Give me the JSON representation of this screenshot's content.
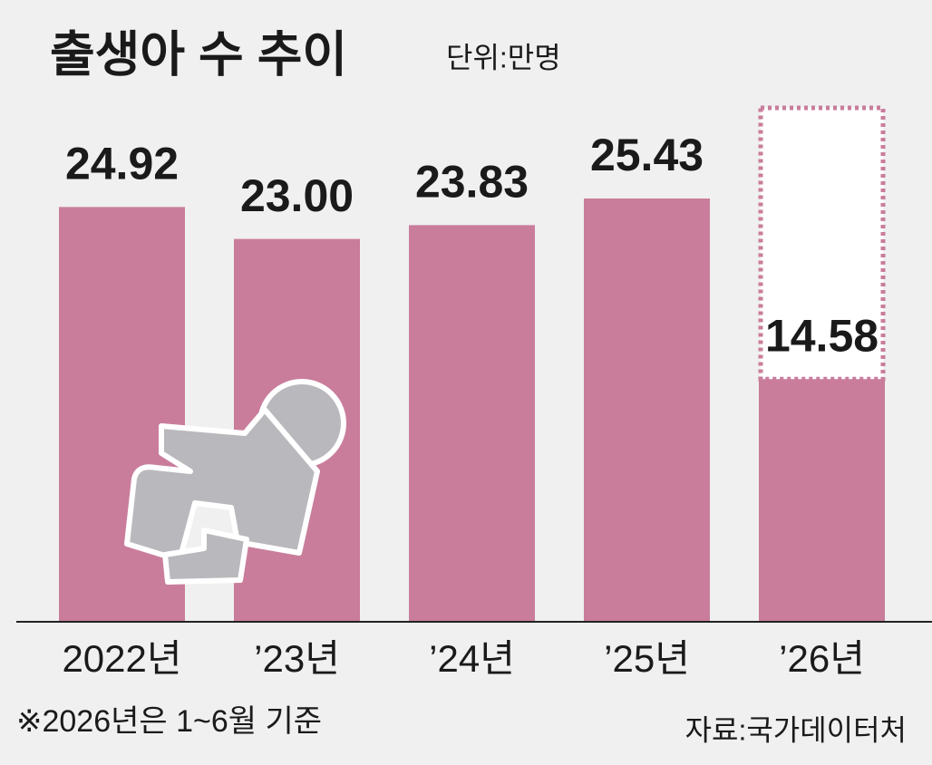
{
  "chart_data": {
    "type": "bar",
    "title": "출생아 수 추이",
    "subtitle": "단위:만명",
    "categories": [
      "2022년",
      "’23년",
      "’24년",
      "’25년",
      "’26년"
    ],
    "values": [
      24.92,
      23.0,
      23.83,
      25.43,
      14.58
    ],
    "value_labels": [
      "24.92",
      "23.00",
      "23.83",
      "25.43",
      "14.58"
    ],
    "color": "#c97d9b",
    "footnote": "※2026년은 1~6월 기준",
    "source": "자료:국가데이터처"
  }
}
